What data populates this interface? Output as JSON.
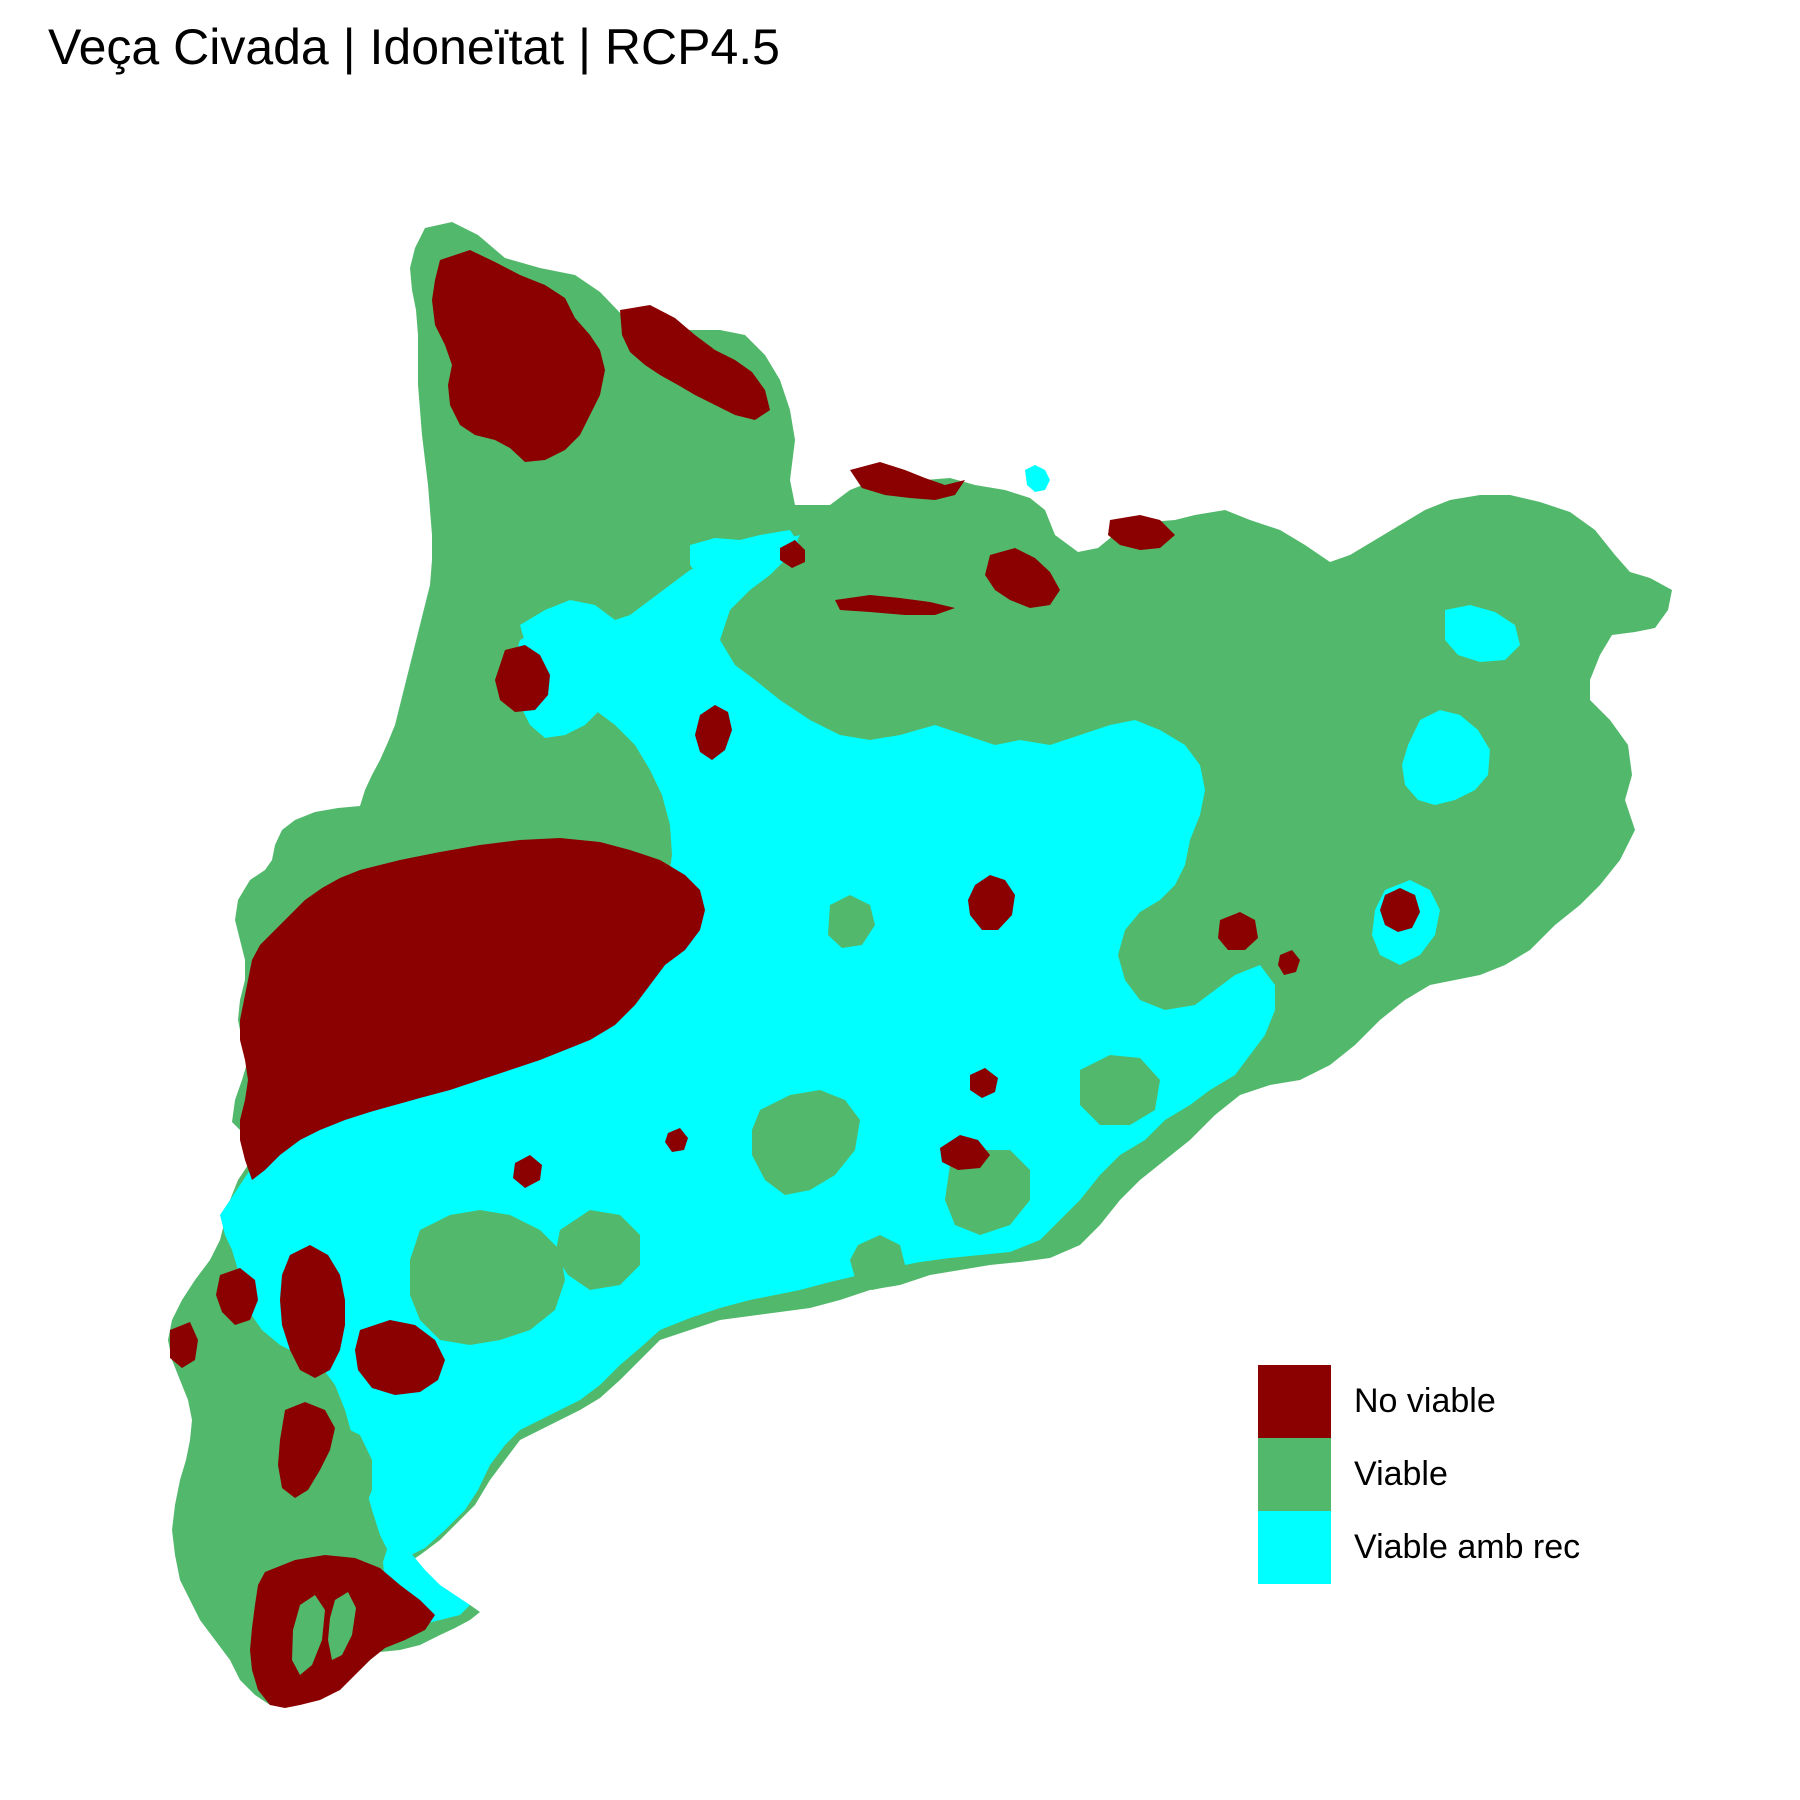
{
  "title": "Veça Civada | Idoneïtat | RCP4.5",
  "colors": {
    "no_viable": "#8b0000",
    "viable": "#52b86b",
    "viable_amb_rec": "#00ffff"
  },
  "legend": {
    "items": [
      {
        "label": "No viable",
        "color": "#8b0000"
      },
      {
        "label": "Viable",
        "color": "#52b86b"
      },
      {
        "label": "Viable amb rec",
        "color": "#00ffff"
      }
    ]
  }
}
